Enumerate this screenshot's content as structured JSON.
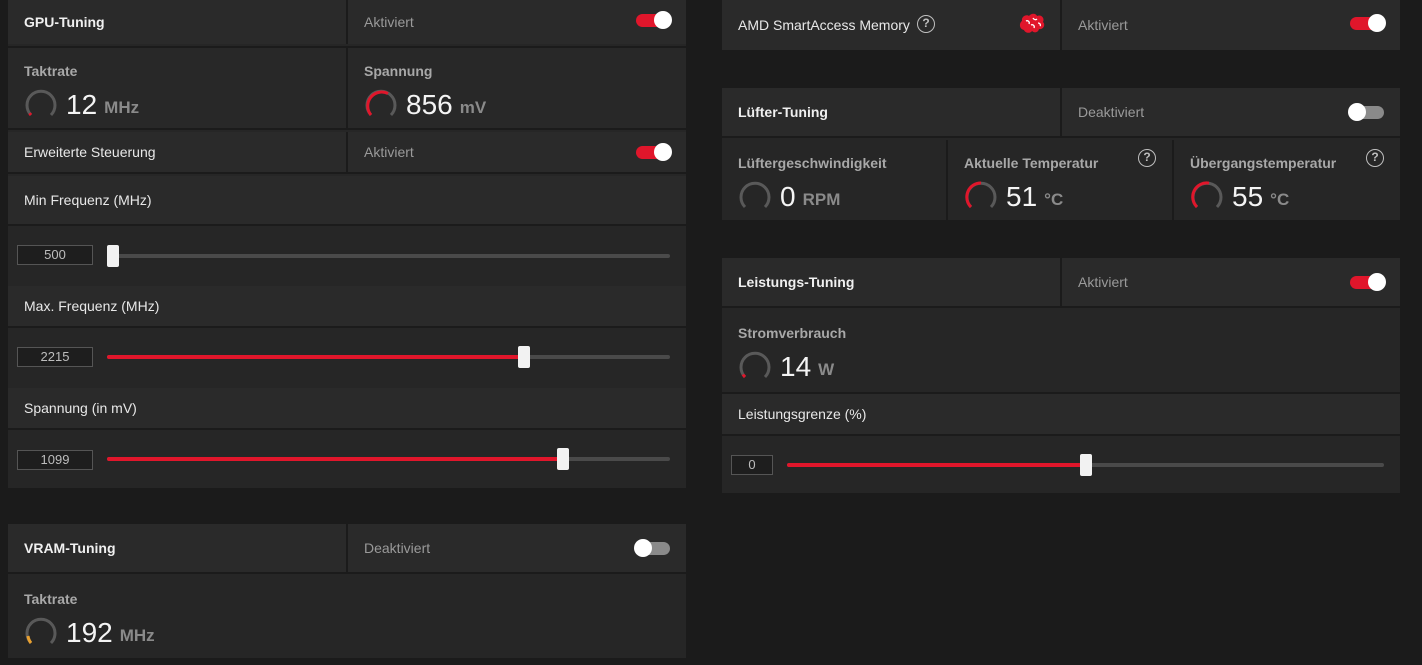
{
  "gpu_tuning": {
    "title": "GPU-Tuning",
    "status": "Aktiviert",
    "enabled": true,
    "clock": {
      "label": "Taktrate",
      "value": "12",
      "unit": "MHz"
    },
    "voltage": {
      "label": "Spannung",
      "value": "856",
      "unit": "mV"
    },
    "advanced": {
      "label": "Erweiterte Steuerung",
      "status": "Aktiviert",
      "enabled": true
    },
    "min_freq": {
      "label": "Min Frequenz (MHz)",
      "value": "500",
      "level": 0.0
    },
    "max_freq": {
      "label": "Max. Frequenz (MHz)",
      "value": "2215",
      "level": 0.74
    },
    "voltage_mv": {
      "label": "Spannung (in mV)",
      "value": "1099",
      "level": 0.81
    }
  },
  "vram_tuning": {
    "title": "VRAM-Tuning",
    "status": "Deaktiviert",
    "enabled": false,
    "clock": {
      "label": "Taktrate",
      "value": "192",
      "unit": "MHz"
    }
  },
  "smart_access": {
    "label": "AMD SmartAccess Memory",
    "help": "?",
    "status": "Aktiviert",
    "enabled": true
  },
  "fan_tuning": {
    "title": "Lüfter-Tuning",
    "status": "Deaktiviert",
    "enabled": false,
    "fan_speed": {
      "label": "Lüftergeschwindigkeit",
      "value": "0",
      "unit": "RPM"
    },
    "current_temp": {
      "label": "Aktuelle Temperatur",
      "value": "51",
      "unit": "°C",
      "help": "?"
    },
    "junction_temp": {
      "label": "Übergangstemperatur",
      "value": "55",
      "unit": "°C",
      "help": "?"
    }
  },
  "power_tuning": {
    "title": "Leistungs-Tuning",
    "status": "Aktiviert",
    "enabled": true,
    "power": {
      "label": "Stromverbrauch",
      "value": "14",
      "unit": "W"
    },
    "limit": {
      "label": "Leistungsgrenze (%)",
      "value": "0",
      "level": 0.5
    }
  },
  "colors": {
    "accent": "#e0162b",
    "background": "#1b1b1b",
    "panel": "#262626"
  },
  "icons": {
    "help": "help-circle-icon",
    "smart_access": "brain-icon",
    "gauge": "gauge-icon"
  }
}
